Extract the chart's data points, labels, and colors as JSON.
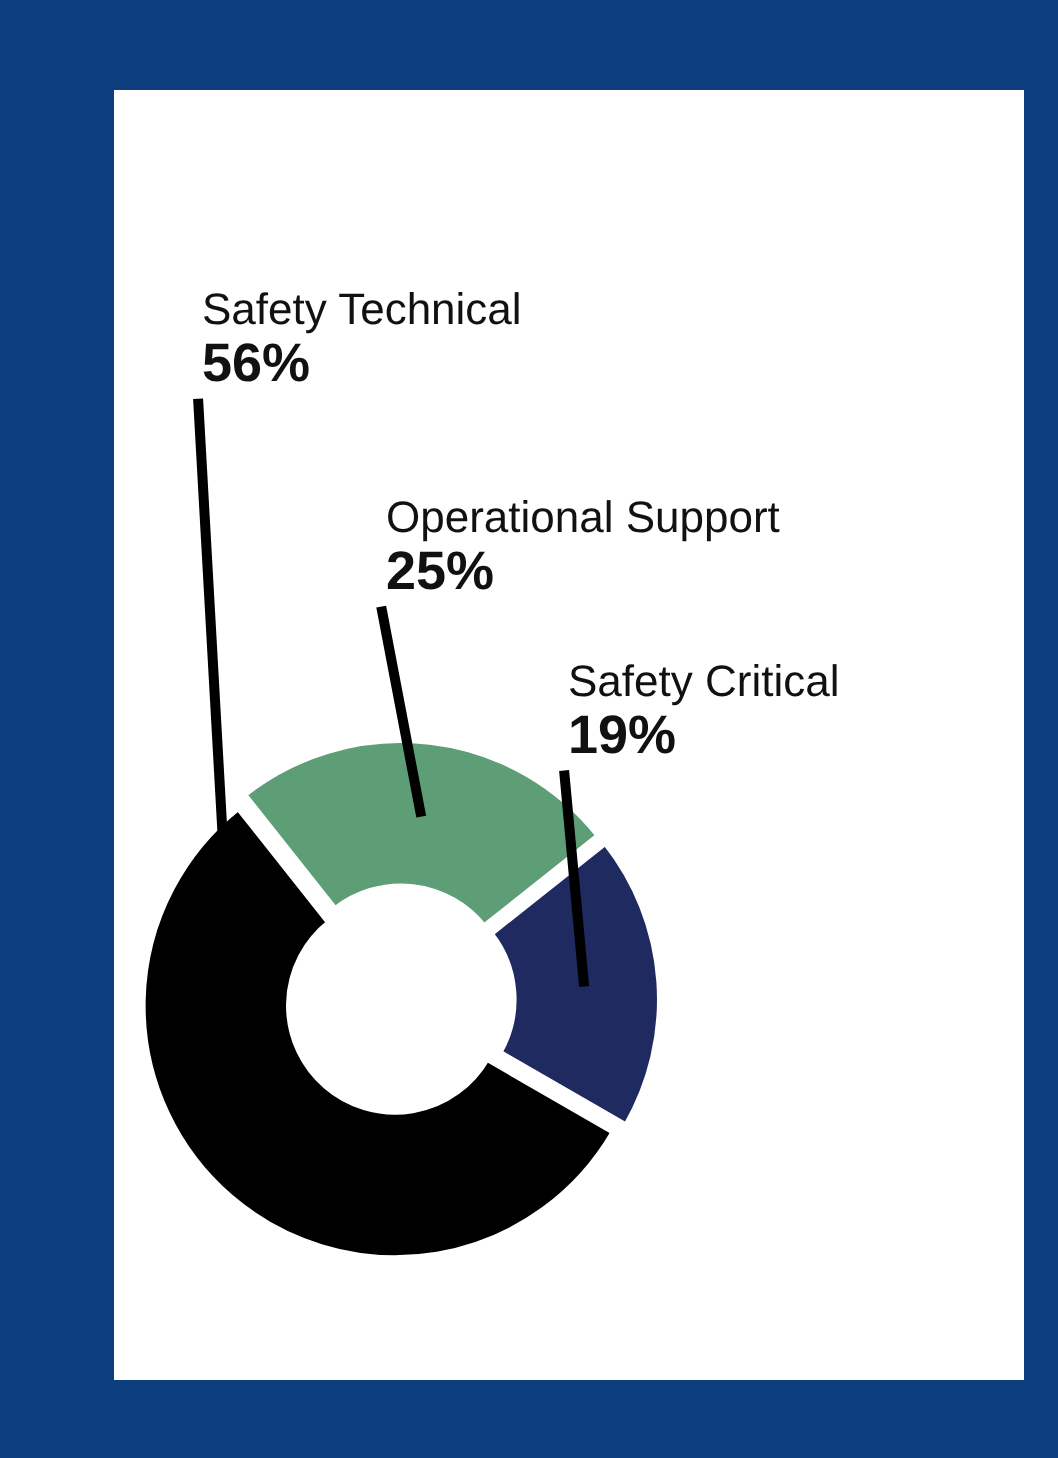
{
  "chart_data": {
    "type": "donut",
    "categories": [
      "Safety Technical",
      "Operational Support",
      "Safety Critical"
    ],
    "values": [
      56,
      25,
      19
    ],
    "colors": [
      "#000000",
      "#5e9e76",
      "#1f2a60"
    ],
    "value_labels": [
      "56%",
      "25%",
      "19%"
    ]
  }
}
